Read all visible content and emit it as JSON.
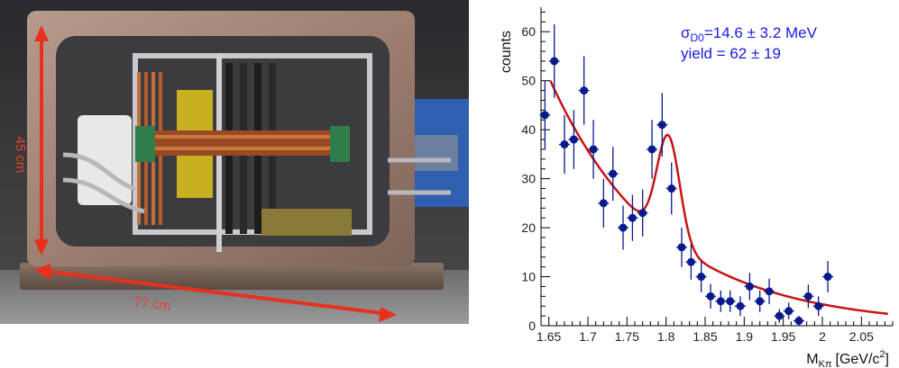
{
  "photo": {
    "height_label": "45 cm",
    "width_label": "77 cm",
    "arrow_color": "#e8301c"
  },
  "chart_data": {
    "type": "scatter",
    "ylabel": "counts",
    "xlabel_main": "M",
    "xlabel_sub": "Kπ",
    "xlabel_unit": "[GeV/c",
    "xlabel_sup": "2",
    "xlabel_close": "]",
    "xlim": [
      1.64,
      2.09
    ],
    "ylim": [
      0,
      65
    ],
    "xticks": [
      1.65,
      1.7,
      1.75,
      1.8,
      1.85,
      1.9,
      1.95,
      2.0,
      2.05
    ],
    "xtick_labels": [
      "1.65",
      "1.7",
      "1.75",
      "1.8",
      "1.85",
      "1.9",
      "1.95",
      "2",
      "2.05"
    ],
    "yticks": [
      0,
      10,
      20,
      30,
      40,
      50,
      60
    ],
    "ytick_labels": [
      "0",
      "10",
      "20",
      "30",
      "40",
      "50",
      "60"
    ],
    "annotation_line1_main": "σ",
    "annotation_line1_sub": "D0",
    "annotation_line1_rest": "=14.6 ± 3.2 MeV",
    "annotation_line2": "yield = 62 ± 19",
    "point_color": "#0a1a8c",
    "fit_color": "#c81414",
    "points": [
      {
        "x": 1.645,
        "y": 43,
        "err": 7
      },
      {
        "x": 1.657,
        "y": 54,
        "err": 7.5
      },
      {
        "x": 1.67,
        "y": 37,
        "err": 6
      },
      {
        "x": 1.682,
        "y": 38,
        "err": 6
      },
      {
        "x": 1.695,
        "y": 48,
        "err": 7
      },
      {
        "x": 1.707,
        "y": 36,
        "err": 6
      },
      {
        "x": 1.72,
        "y": 25,
        "err": 5
      },
      {
        "x": 1.732,
        "y": 31,
        "err": 5.5
      },
      {
        "x": 1.745,
        "y": 20,
        "err": 4.5
      },
      {
        "x": 1.757,
        "y": 22,
        "err": 4.7
      },
      {
        "x": 1.77,
        "y": 23,
        "err": 4.8
      },
      {
        "x": 1.782,
        "y": 36,
        "err": 6
      },
      {
        "x": 1.795,
        "y": 41,
        "err": 6.5
      },
      {
        "x": 1.807,
        "y": 28,
        "err": 5.3
      },
      {
        "x": 1.82,
        "y": 16,
        "err": 4
      },
      {
        "x": 1.832,
        "y": 13,
        "err": 3.6
      },
      {
        "x": 1.845,
        "y": 10,
        "err": 3.2
      },
      {
        "x": 1.857,
        "y": 6,
        "err": 2.5
      },
      {
        "x": 1.87,
        "y": 5,
        "err": 2.2
      },
      {
        "x": 1.882,
        "y": 5,
        "err": 2.2
      },
      {
        "x": 1.895,
        "y": 4,
        "err": 2
      },
      {
        "x": 1.907,
        "y": 8,
        "err": 2.8
      },
      {
        "x": 1.92,
        "y": 5,
        "err": 2.2
      },
      {
        "x": 1.932,
        "y": 7,
        "err": 2.6
      },
      {
        "x": 1.945,
        "y": 2,
        "err": 1.4
      },
      {
        "x": 1.957,
        "y": 3,
        "err": 1.7
      },
      {
        "x": 1.97,
        "y": 1,
        "err": 1
      },
      {
        "x": 1.982,
        "y": 6,
        "err": 2.4
      },
      {
        "x": 1.995,
        "y": 4,
        "err": 2
      },
      {
        "x": 2.007,
        "y": 10,
        "err": 3.2
      }
    ],
    "fit": {
      "background_a": 50,
      "background_x0": 1.652,
      "background_decay": 7.0,
      "peak_mean": 1.803,
      "peak_sigma": 0.0146,
      "peak_amplitude": 21.5
    }
  }
}
